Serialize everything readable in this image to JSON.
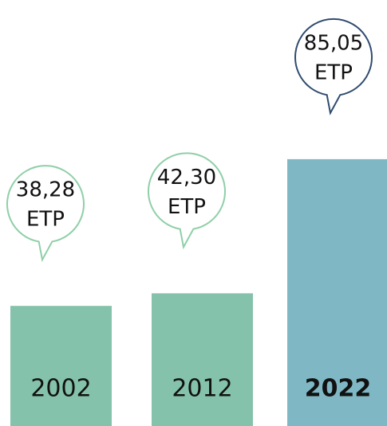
{
  "chart_data": {
    "type": "bar",
    "categories": [
      "2002",
      "2012",
      "2022"
    ],
    "values": [
      38.28,
      42.3,
      85.05
    ],
    "value_labels": [
      "38,28",
      "42,30",
      "85,05"
    ],
    "unit_label": "ETP",
    "colors": [
      "#85c2ab",
      "#85c2ab",
      "#7fb8c4"
    ],
    "bubble_colors": [
      "#8fcfa7",
      "#8fcfa7",
      "#2f4b6f"
    ],
    "highlight_index": 2
  }
}
